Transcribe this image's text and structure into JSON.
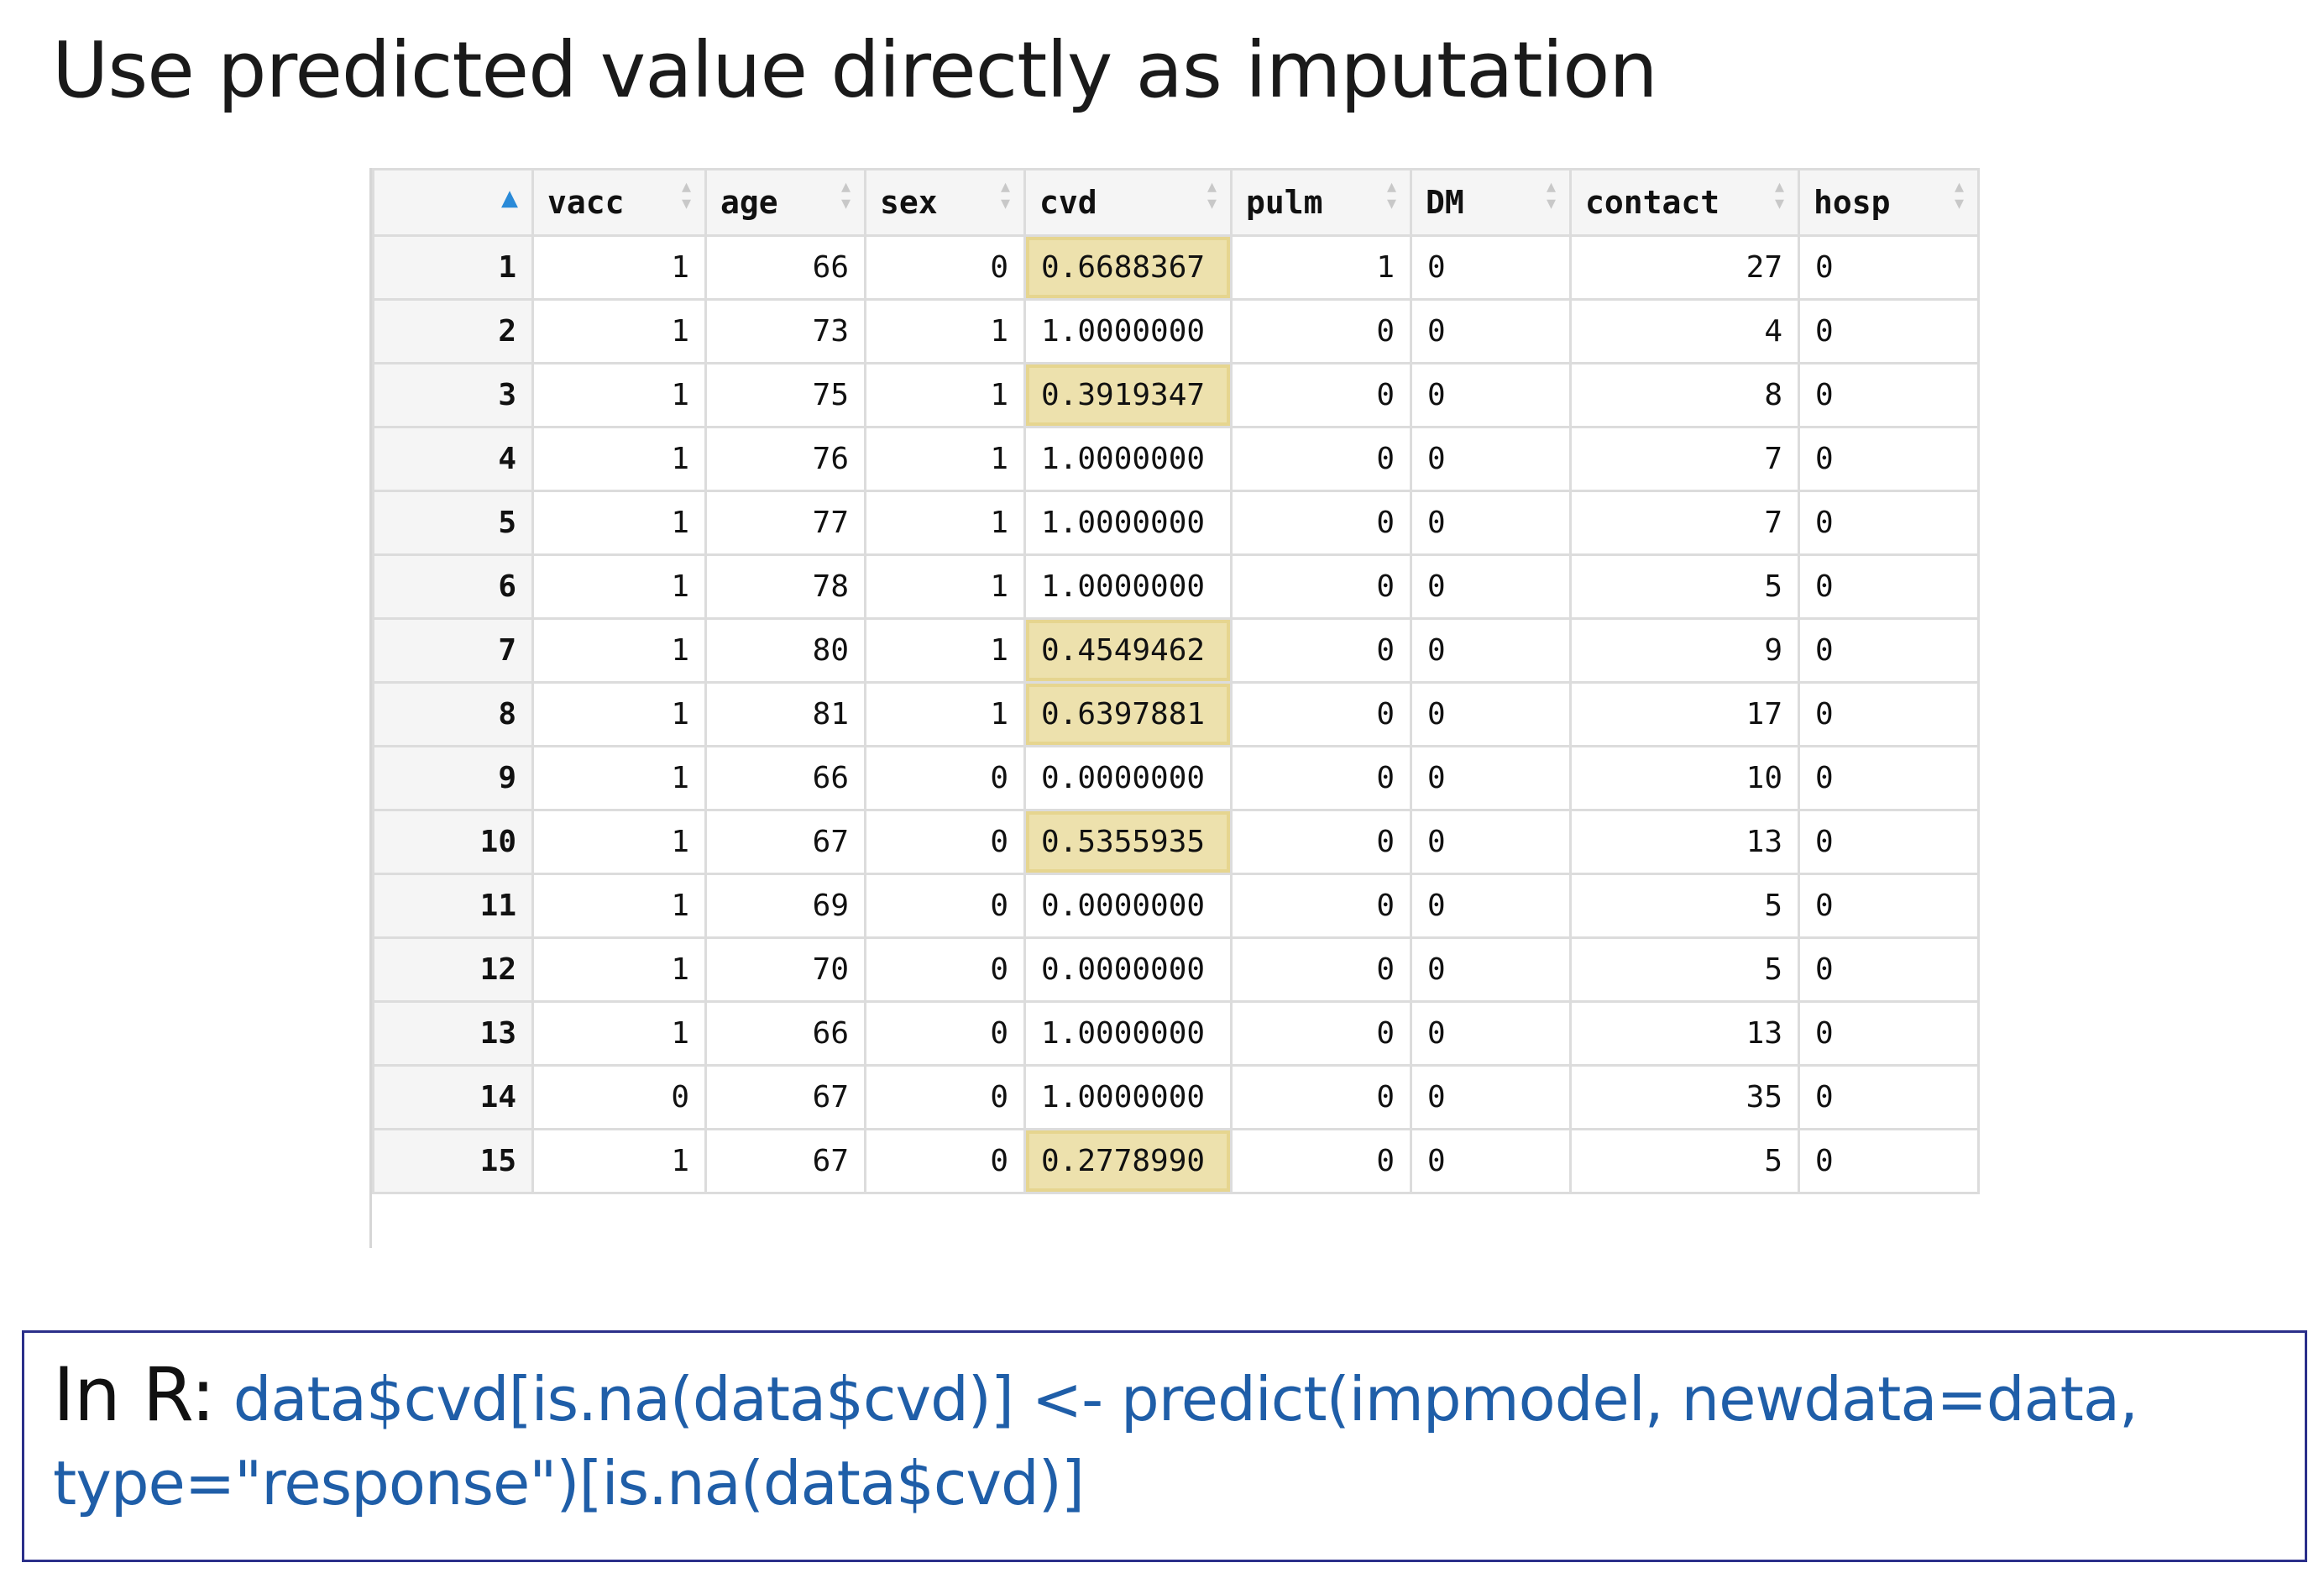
{
  "slide": {
    "title": "Use predicted value directly as imputation"
  },
  "table": {
    "columns": [
      "",
      "vacc",
      "age",
      "sex",
      "cvd",
      "pulm",
      "DM",
      "contact",
      "hosp"
    ],
    "rows": [
      {
        "rn": "1",
        "vacc": "1",
        "age": "66",
        "sex": "0",
        "cvd": "0.6688367",
        "cvd_imputed": true,
        "pulm": "1",
        "DM": "0",
        "contact": "27",
        "hosp": "0"
      },
      {
        "rn": "2",
        "vacc": "1",
        "age": "73",
        "sex": "1",
        "cvd": "1.0000000",
        "cvd_imputed": false,
        "pulm": "0",
        "DM": "0",
        "contact": "4",
        "hosp": "0"
      },
      {
        "rn": "3",
        "vacc": "1",
        "age": "75",
        "sex": "1",
        "cvd": "0.3919347",
        "cvd_imputed": true,
        "pulm": "0",
        "DM": "0",
        "contact": "8",
        "hosp": "0"
      },
      {
        "rn": "4",
        "vacc": "1",
        "age": "76",
        "sex": "1",
        "cvd": "1.0000000",
        "cvd_imputed": false,
        "pulm": "0",
        "DM": "0",
        "contact": "7",
        "hosp": "0"
      },
      {
        "rn": "5",
        "vacc": "1",
        "age": "77",
        "sex": "1",
        "cvd": "1.0000000",
        "cvd_imputed": false,
        "pulm": "0",
        "DM": "0",
        "contact": "7",
        "hosp": "0"
      },
      {
        "rn": "6",
        "vacc": "1",
        "age": "78",
        "sex": "1",
        "cvd": "1.0000000",
        "cvd_imputed": false,
        "pulm": "0",
        "DM": "0",
        "contact": "5",
        "hosp": "0"
      },
      {
        "rn": "7",
        "vacc": "1",
        "age": "80",
        "sex": "1",
        "cvd": "0.4549462",
        "cvd_imputed": true,
        "pulm": "0",
        "DM": "0",
        "contact": "9",
        "hosp": "0"
      },
      {
        "rn": "8",
        "vacc": "1",
        "age": "81",
        "sex": "1",
        "cvd": "0.6397881",
        "cvd_imputed": true,
        "pulm": "0",
        "DM": "0",
        "contact": "17",
        "hosp": "0"
      },
      {
        "rn": "9",
        "vacc": "1",
        "age": "66",
        "sex": "0",
        "cvd": "0.0000000",
        "cvd_imputed": false,
        "pulm": "0",
        "DM": "0",
        "contact": "10",
        "hosp": "0"
      },
      {
        "rn": "10",
        "vacc": "1",
        "age": "67",
        "sex": "0",
        "cvd": "0.5355935",
        "cvd_imputed": true,
        "pulm": "0",
        "DM": "0",
        "contact": "13",
        "hosp": "0"
      },
      {
        "rn": "11",
        "vacc": "1",
        "age": "69",
        "sex": "0",
        "cvd": "0.0000000",
        "cvd_imputed": false,
        "pulm": "0",
        "DM": "0",
        "contact": "5",
        "hosp": "0"
      },
      {
        "rn": "12",
        "vacc": "1",
        "age": "70",
        "sex": "0",
        "cvd": "0.0000000",
        "cvd_imputed": false,
        "pulm": "0",
        "DM": "0",
        "contact": "5",
        "hosp": "0"
      },
      {
        "rn": "13",
        "vacc": "1",
        "age": "66",
        "sex": "0",
        "cvd": "1.0000000",
        "cvd_imputed": false,
        "pulm": "0",
        "DM": "0",
        "contact": "13",
        "hosp": "0"
      },
      {
        "rn": "14",
        "vacc": "0",
        "age": "67",
        "sex": "0",
        "cvd": "1.0000000",
        "cvd_imputed": false,
        "pulm": "0",
        "DM": "0",
        "contact": "35",
        "hosp": "0"
      },
      {
        "rn": "15",
        "vacc": "1",
        "age": "67",
        "sex": "0",
        "cvd": "0.2778990",
        "cvd_imputed": true,
        "pulm": "0",
        "DM": "0",
        "contact": "5",
        "hosp": "0"
      }
    ],
    "highlight_color": "#ede1ad"
  },
  "code": {
    "prefix": "In R:",
    "line1": "data$cvd[is.na(data$cvd)] <- predict(impmodel, newdata=data,",
    "line2": "type=\"response\")[is.na(data$cvd)]",
    "code_color": "#1f5ea8",
    "border_color": "#2b2f8a"
  }
}
